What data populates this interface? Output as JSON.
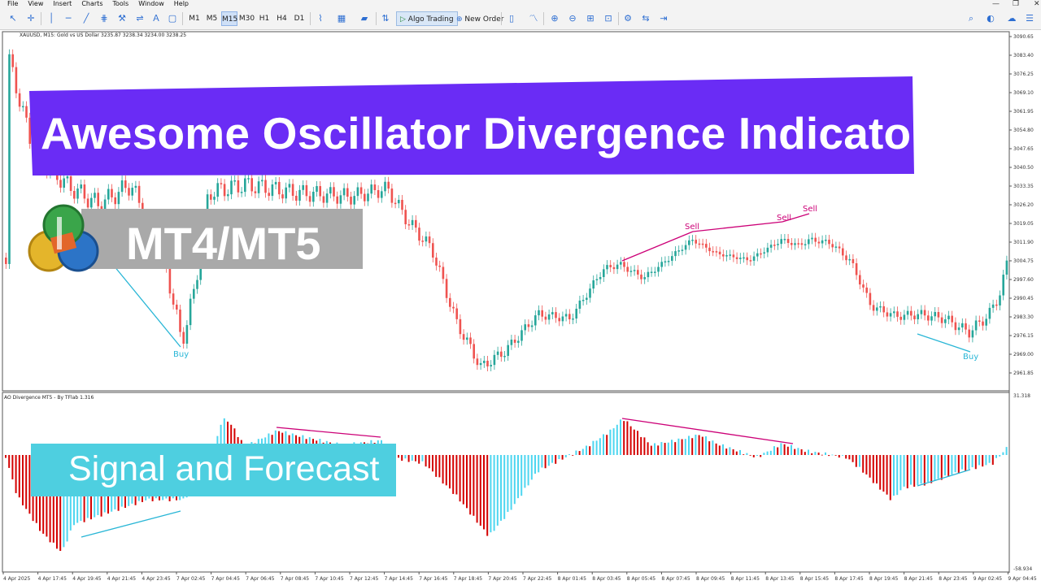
{
  "menu": [
    "File",
    "View",
    "Insert",
    "Charts",
    "Tools",
    "Window",
    "Help"
  ],
  "toolbar": {
    "timeframes": [
      "M1",
      "M5",
      "M15",
      "M30",
      "H1",
      "H4",
      "D1"
    ],
    "active_timeframe": "M15",
    "algo_trading": "Algo Trading",
    "new_order": "New Order"
  },
  "chart": {
    "symbol_info": "XAUUSD, M15:  Gold vs US Dollar  3235.87 3238.34 3234.00 3238.25",
    "indicator_info": "AO Divergence MT5 - By TFlab 1.316",
    "price_ticks": [
      "3090.65",
      "3083.40",
      "3076.25",
      "3069.10",
      "3061.95",
      "3054.80",
      "3047.65",
      "3040.50",
      "3033.35",
      "3026.20",
      "3019.05",
      "3011.90",
      "3004.75",
      "2997.60",
      "2990.45",
      "2983.30",
      "2976.15",
      "2969.00",
      "2961.85"
    ],
    "ao_top": "31.318",
    "ao_bottom": "-58.934",
    "time_ticks": [
      "4 Apr 2025",
      "4 Apr 17:45",
      "4 Apr 19:45",
      "4 Apr 21:45",
      "4 Apr 23:45",
      "7 Apr 02:45",
      "7 Apr 04:45",
      "7 Apr 06:45",
      "7 Apr 08:45",
      "7 Apr 10:45",
      "7 Apr 12:45",
      "7 Apr 14:45",
      "7 Apr 16:45",
      "7 Apr 18:45",
      "7 Apr 20:45",
      "7 Apr 22:45",
      "8 Apr 01:45",
      "8 Apr 03:45",
      "8 Apr 05:45",
      "8 Apr 07:45",
      "8 Apr 09:45",
      "8 Apr 11:45",
      "8 Apr 13:45",
      "8 Apr 15:45",
      "8 Apr 17:45",
      "8 Apr 19:45",
      "8 Apr 21:45",
      "8 Apr 23:45",
      "9 Apr 02:45",
      "9 Apr 04:45"
    ],
    "signals": {
      "buy": "Buy",
      "sell": "Sell"
    },
    "colors": {
      "bull": "#26a69a",
      "bear": "#ef5350",
      "ao_up": "#4dd6f0",
      "ao_down": "#d40000",
      "sell_line": "#cc0077",
      "buy_line": "#29b6d6"
    }
  },
  "overlay": {
    "title": "Awesome Oscillator Divergence Indicator",
    "platform": "MT4/MT5",
    "subtitle": "Signal and Forecast",
    "title_bg": "#6a2cf5",
    "signal_bg": "#4ecfe0"
  }
}
